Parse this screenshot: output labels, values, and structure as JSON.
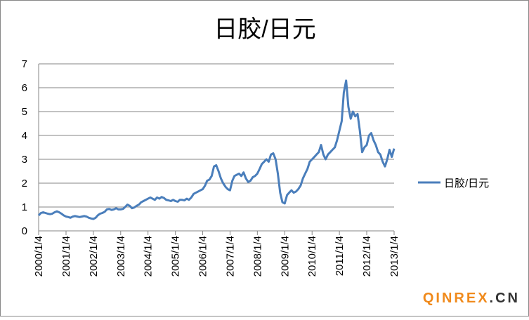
{
  "chart_data": {
    "type": "line",
    "title": "日胶/日元",
    "x": [
      "2000/1/4",
      "2000/2/4",
      "2000/3/4",
      "2000/4/4",
      "2000/5/4",
      "2000/6/4",
      "2000/7/4",
      "2000/8/4",
      "2000/9/4",
      "2000/10/4",
      "2000/11/4",
      "2000/12/4",
      "2001/1/4",
      "2001/2/4",
      "2001/3/4",
      "2001/4/4",
      "2001/5/4",
      "2001/6/4",
      "2001/7/4",
      "2001/8/4",
      "2001/9/4",
      "2001/10/4",
      "2001/11/4",
      "2001/12/4",
      "2002/1/4",
      "2002/2/4",
      "2002/3/4",
      "2002/4/4",
      "2002/5/4",
      "2002/6/4",
      "2002/7/4",
      "2002/8/4",
      "2002/9/4",
      "2002/10/4",
      "2002/11/4",
      "2002/12/4",
      "2003/1/4",
      "2003/2/4",
      "2003/3/4",
      "2003/4/4",
      "2003/5/4",
      "2003/6/4",
      "2003/7/4",
      "2003/8/4",
      "2003/9/4",
      "2003/10/4",
      "2003/11/4",
      "2003/12/4",
      "2004/1/4",
      "2004/2/4",
      "2004/3/4",
      "2004/4/4",
      "2004/5/4",
      "2004/6/4",
      "2004/7/4",
      "2004/8/4",
      "2004/9/4",
      "2004/10/4",
      "2004/11/4",
      "2004/12/4",
      "2005/1/4",
      "2005/2/4",
      "2005/3/4",
      "2005/4/4",
      "2005/5/4",
      "2005/6/4",
      "2005/7/4",
      "2005/8/4",
      "2005/9/4",
      "2005/10/4",
      "2005/11/4",
      "2005/12/4",
      "2006/1/4",
      "2006/2/4",
      "2006/3/4",
      "2006/4/4",
      "2006/5/4",
      "2006/6/4",
      "2006/7/4",
      "2006/8/4",
      "2006/9/4",
      "2006/10/4",
      "2006/11/4",
      "2006/12/4",
      "2007/1/4",
      "2007/2/4",
      "2007/3/4",
      "2007/4/4",
      "2007/5/4",
      "2007/6/4",
      "2007/7/4",
      "2007/8/4",
      "2007/9/4",
      "2007/10/4",
      "2007/11/4",
      "2007/12/4",
      "2008/1/4",
      "2008/2/4",
      "2008/3/4",
      "2008/4/4",
      "2008/5/4",
      "2008/6/4",
      "2008/7/4",
      "2008/8/4",
      "2008/9/4",
      "2008/10/4",
      "2008/11/4",
      "2008/12/4",
      "2009/1/4",
      "2009/2/4",
      "2009/3/4",
      "2009/4/4",
      "2009/5/4",
      "2009/6/4",
      "2009/7/4",
      "2009/8/4",
      "2009/9/4",
      "2009/10/4",
      "2009/11/4",
      "2009/12/4",
      "2010/1/4",
      "2010/2/4",
      "2010/3/4",
      "2010/4/4",
      "2010/5/4",
      "2010/6/4",
      "2010/7/4",
      "2010/8/4",
      "2010/9/4",
      "2010/10/4",
      "2010/11/4",
      "2010/12/4",
      "2011/1/4",
      "2011/2/4",
      "2011/3/4",
      "2011/4/4",
      "2011/5/4",
      "2011/6/4",
      "2011/7/4",
      "2011/8/4",
      "2011/9/4",
      "2011/10/4",
      "2011/11/4",
      "2011/12/4",
      "2012/1/4",
      "2012/2/4",
      "2012/3/4",
      "2012/4/4",
      "2012/5/4",
      "2012/6/4",
      "2012/7/4",
      "2012/8/4",
      "2012/9/4",
      "2012/10/4",
      "2012/11/4",
      "2012/12/4",
      "2013/1/4"
    ],
    "series": [
      {
        "name": "日胶/日元",
        "color": "#4a7ebb",
        "values": [
          0.65,
          0.75,
          0.78,
          0.75,
          0.72,
          0.7,
          0.72,
          0.78,
          0.82,
          0.78,
          0.72,
          0.65,
          0.6,
          0.58,
          0.55,
          0.6,
          0.62,
          0.6,
          0.58,
          0.6,
          0.62,
          0.6,
          0.55,
          0.52,
          0.5,
          0.55,
          0.65,
          0.72,
          0.75,
          0.8,
          0.9,
          0.92,
          0.88,
          0.9,
          0.95,
          0.9,
          0.9,
          0.92,
          1.0,
          1.1,
          1.05,
          0.95,
          0.98,
          1.05,
          1.1,
          1.2,
          1.25,
          1.3,
          1.35,
          1.4,
          1.35,
          1.3,
          1.4,
          1.35,
          1.42,
          1.38,
          1.3,
          1.28,
          1.25,
          1.3,
          1.25,
          1.22,
          1.3,
          1.3,
          1.28,
          1.35,
          1.3,
          1.4,
          1.55,
          1.6,
          1.65,
          1.7,
          1.75,
          1.9,
          2.1,
          2.15,
          2.3,
          2.7,
          2.75,
          2.5,
          2.2,
          2.0,
          1.85,
          1.75,
          1.7,
          2.1,
          2.3,
          2.35,
          2.4,
          2.3,
          2.45,
          2.2,
          2.05,
          2.1,
          2.25,
          2.3,
          2.4,
          2.6,
          2.8,
          2.9,
          3.0,
          2.9,
          3.2,
          3.25,
          3.0,
          2.4,
          1.6,
          1.2,
          1.15,
          1.5,
          1.6,
          1.7,
          1.6,
          1.65,
          1.75,
          1.9,
          2.2,
          2.4,
          2.6,
          2.9,
          3.0,
          3.1,
          3.2,
          3.3,
          3.6,
          3.2,
          3.0,
          3.2,
          3.3,
          3.4,
          3.5,
          3.8,
          4.2,
          4.6,
          5.8,
          6.3,
          5.2,
          4.7,
          5.0,
          4.8,
          4.9,
          4.2,
          3.3,
          3.5,
          3.6,
          4.0,
          4.1,
          3.8,
          3.6,
          3.3,
          3.2,
          2.9,
          2.7,
          3.0,
          3.4,
          3.1,
          3.45
        ]
      }
    ],
    "xlim": [
      "2000/1/4",
      "2013/1/4"
    ],
    "xticks": [
      "2000/1/4",
      "2001/1/4",
      "2002/1/4",
      "2003/1/4",
      "2004/1/4",
      "2005/1/4",
      "2006/1/4",
      "2007/1/4",
      "2008/1/4",
      "2009/1/4",
      "2010/1/4",
      "2011/1/4",
      "2012/1/4",
      "2013/1/4"
    ],
    "ylim": [
      0,
      7
    ],
    "yticks": [
      0,
      1,
      2,
      3,
      4,
      5,
      6,
      7
    ],
    "grid": true,
    "legend": "right",
    "watermark": [
      "QINREX",
      ".CN"
    ]
  }
}
